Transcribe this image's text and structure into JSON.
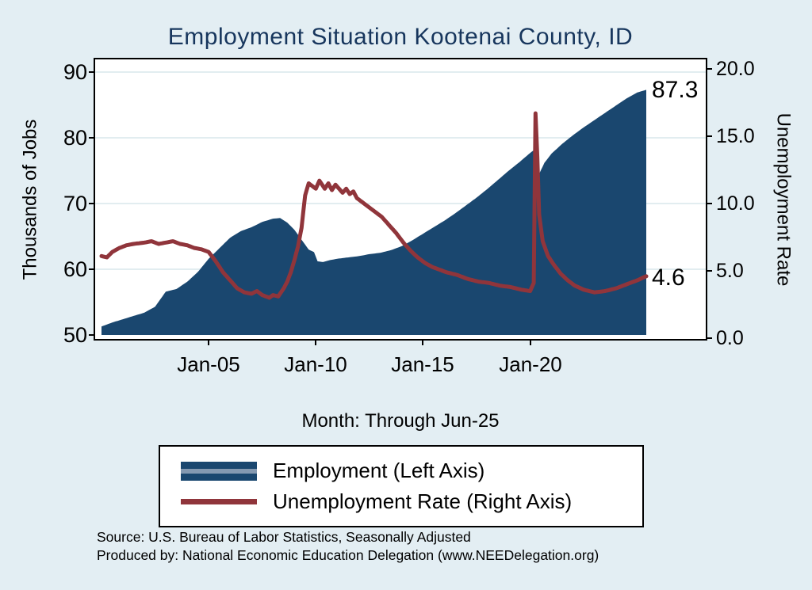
{
  "title": "Employment Situation Kootenai  County, ID",
  "colors": {
    "background": "#e3eef3",
    "plot_background": "#ffffff",
    "title": "#17365d",
    "employment_area": "#1a476f",
    "unemployment_line": "#90353b",
    "gridline": "#d9e7ec",
    "legend_stripe": "#8499b1"
  },
  "annotations": {
    "employment_end": "87.3",
    "unemployment_end": "4.6"
  },
  "notes": {
    "source": "Source: U.S. Bureau of Labor Statistics, Seasonally Adjusted",
    "produced_by": "Produced by: National Economic Education Delegation (www.NEEDelegation.org)"
  },
  "chart_data": {
    "type": "area",
    "title": "Employment Situation Kootenai County, ID",
    "x_axis": {
      "label": "Month: Through Jun-25",
      "start_month": "Jan-2000",
      "end_month": "Jun-2025",
      "total_months": 305,
      "ticks": [
        {
          "label": "Jan-05",
          "month": 60
        },
        {
          "label": "Jan-10",
          "month": 120
        },
        {
          "label": "Jan-15",
          "month": 180
        },
        {
          "label": "Jan-20",
          "month": 240
        }
      ]
    },
    "left_axis": {
      "title": "Thousands of Jobs",
      "range": [
        50,
        90
      ],
      "ticks": [
        50,
        60,
        70,
        80,
        90
      ],
      "tick_labels": [
        "50",
        "60",
        "70",
        "80",
        "90"
      ],
      "grid": [
        60,
        70,
        80,
        90
      ]
    },
    "right_axis": {
      "title": "Unemployment Rate",
      "range": [
        0,
        20
      ],
      "ticks": [
        0,
        5,
        10,
        15,
        20
      ],
      "tick_labels": [
        "0.0",
        "5.0",
        "10.0",
        "15.0",
        "20.0"
      ]
    },
    "series": [
      {
        "name": "Employment (Left Axis)",
        "axis": "left",
        "type": "area",
        "last_value": 87.3,
        "keyframes": [
          [
            0,
            51.3
          ],
          [
            6,
            51.9
          ],
          [
            12,
            52.4
          ],
          [
            18,
            52.9
          ],
          [
            24,
            53.4
          ],
          [
            30,
            54.3
          ],
          [
            36,
            56.6
          ],
          [
            42,
            57.0
          ],
          [
            48,
            58.1
          ],
          [
            54,
            59.6
          ],
          [
            60,
            61.6
          ],
          [
            66,
            63.2
          ],
          [
            72,
            64.8
          ],
          [
            78,
            65.8
          ],
          [
            84,
            66.4
          ],
          [
            90,
            67.2
          ],
          [
            96,
            67.7
          ],
          [
            100,
            67.8
          ],
          [
            104,
            67.1
          ],
          [
            108,
            66.0
          ],
          [
            112,
            64.5
          ],
          [
            116,
            63.0
          ],
          [
            119,
            62.6
          ],
          [
            121,
            61.2
          ],
          [
            124,
            61.1
          ],
          [
            128,
            61.4
          ],
          [
            132,
            61.6
          ],
          [
            138,
            61.8
          ],
          [
            144,
            62.0
          ],
          [
            150,
            62.3
          ],
          [
            156,
            62.5
          ],
          [
            162,
            62.9
          ],
          [
            168,
            63.5
          ],
          [
            174,
            64.4
          ],
          [
            180,
            65.4
          ],
          [
            186,
            66.4
          ],
          [
            192,
            67.4
          ],
          [
            198,
            68.5
          ],
          [
            204,
            69.7
          ],
          [
            210,
            70.9
          ],
          [
            216,
            72.2
          ],
          [
            222,
            73.6
          ],
          [
            228,
            75.0
          ],
          [
            234,
            76.3
          ],
          [
            240,
            77.7
          ],
          [
            242,
            78.1
          ],
          [
            243,
            72.5
          ],
          [
            245,
            74.5
          ],
          [
            248,
            76.2
          ],
          [
            252,
            77.6
          ],
          [
            258,
            79.1
          ],
          [
            264,
            80.4
          ],
          [
            270,
            81.6
          ],
          [
            276,
            82.7
          ],
          [
            282,
            83.8
          ],
          [
            288,
            84.9
          ],
          [
            294,
            86.0
          ],
          [
            300,
            86.9
          ],
          [
            305,
            87.3
          ]
        ]
      },
      {
        "name": "Unemployment Rate (Right Axis)",
        "axis": "right",
        "type": "line",
        "last_value": 4.6,
        "keyframes": [
          [
            0,
            6.1
          ],
          [
            3,
            6.0
          ],
          [
            6,
            6.4
          ],
          [
            10,
            6.7
          ],
          [
            14,
            6.9
          ],
          [
            18,
            7.0
          ],
          [
            24,
            7.1
          ],
          [
            28,
            7.2
          ],
          [
            32,
            7.0
          ],
          [
            36,
            7.1
          ],
          [
            40,
            7.2
          ],
          [
            44,
            7.0
          ],
          [
            48,
            6.9
          ],
          [
            52,
            6.7
          ],
          [
            56,
            6.6
          ],
          [
            60,
            6.4
          ],
          [
            64,
            5.7
          ],
          [
            68,
            4.9
          ],
          [
            72,
            4.3
          ],
          [
            76,
            3.7
          ],
          [
            80,
            3.4
          ],
          [
            84,
            3.3
          ],
          [
            87,
            3.5
          ],
          [
            90,
            3.2
          ],
          [
            94,
            3.0
          ],
          [
            96,
            3.2
          ],
          [
            99,
            3.1
          ],
          [
            102,
            3.7
          ],
          [
            104,
            4.2
          ],
          [
            106,
            4.9
          ],
          [
            108,
            5.8
          ],
          [
            110,
            6.8
          ],
          [
            112,
            8.2
          ],
          [
            114,
            10.6
          ],
          [
            116,
            11.5
          ],
          [
            118,
            11.3
          ],
          [
            120,
            11.1
          ],
          [
            122,
            11.7
          ],
          [
            125,
            11.1
          ],
          [
            127,
            11.5
          ],
          [
            129,
            11.0
          ],
          [
            131,
            11.4
          ],
          [
            133,
            11.1
          ],
          [
            135,
            10.8
          ],
          [
            137,
            11.1
          ],
          [
            139,
            10.7
          ],
          [
            141,
            10.9
          ],
          [
            143,
            10.4
          ],
          [
            145,
            10.2
          ],
          [
            149,
            9.8
          ],
          [
            153,
            9.4
          ],
          [
            157,
            9.0
          ],
          [
            161,
            8.4
          ],
          [
            165,
            7.8
          ],
          [
            169,
            7.1
          ],
          [
            173,
            6.5
          ],
          [
            177,
            6.0
          ],
          [
            181,
            5.6
          ],
          [
            185,
            5.3
          ],
          [
            189,
            5.1
          ],
          [
            193,
            4.9
          ],
          [
            199,
            4.7
          ],
          [
            205,
            4.4
          ],
          [
            211,
            4.2
          ],
          [
            217,
            4.1
          ],
          [
            223,
            3.9
          ],
          [
            229,
            3.8
          ],
          [
            235,
            3.6
          ],
          [
            240,
            3.5
          ],
          [
            242,
            4.1
          ],
          [
            243,
            16.7
          ],
          [
            244,
            13.5
          ],
          [
            245,
            9.2
          ],
          [
            247,
            7.2
          ],
          [
            250,
            6.1
          ],
          [
            253,
            5.5
          ],
          [
            257,
            4.8
          ],
          [
            261,
            4.3
          ],
          [
            265,
            3.9
          ],
          [
            270,
            3.6
          ],
          [
            276,
            3.4
          ],
          [
            282,
            3.5
          ],
          [
            288,
            3.7
          ],
          [
            294,
            4.0
          ],
          [
            300,
            4.3
          ],
          [
            305,
            4.6
          ]
        ]
      }
    ]
  }
}
